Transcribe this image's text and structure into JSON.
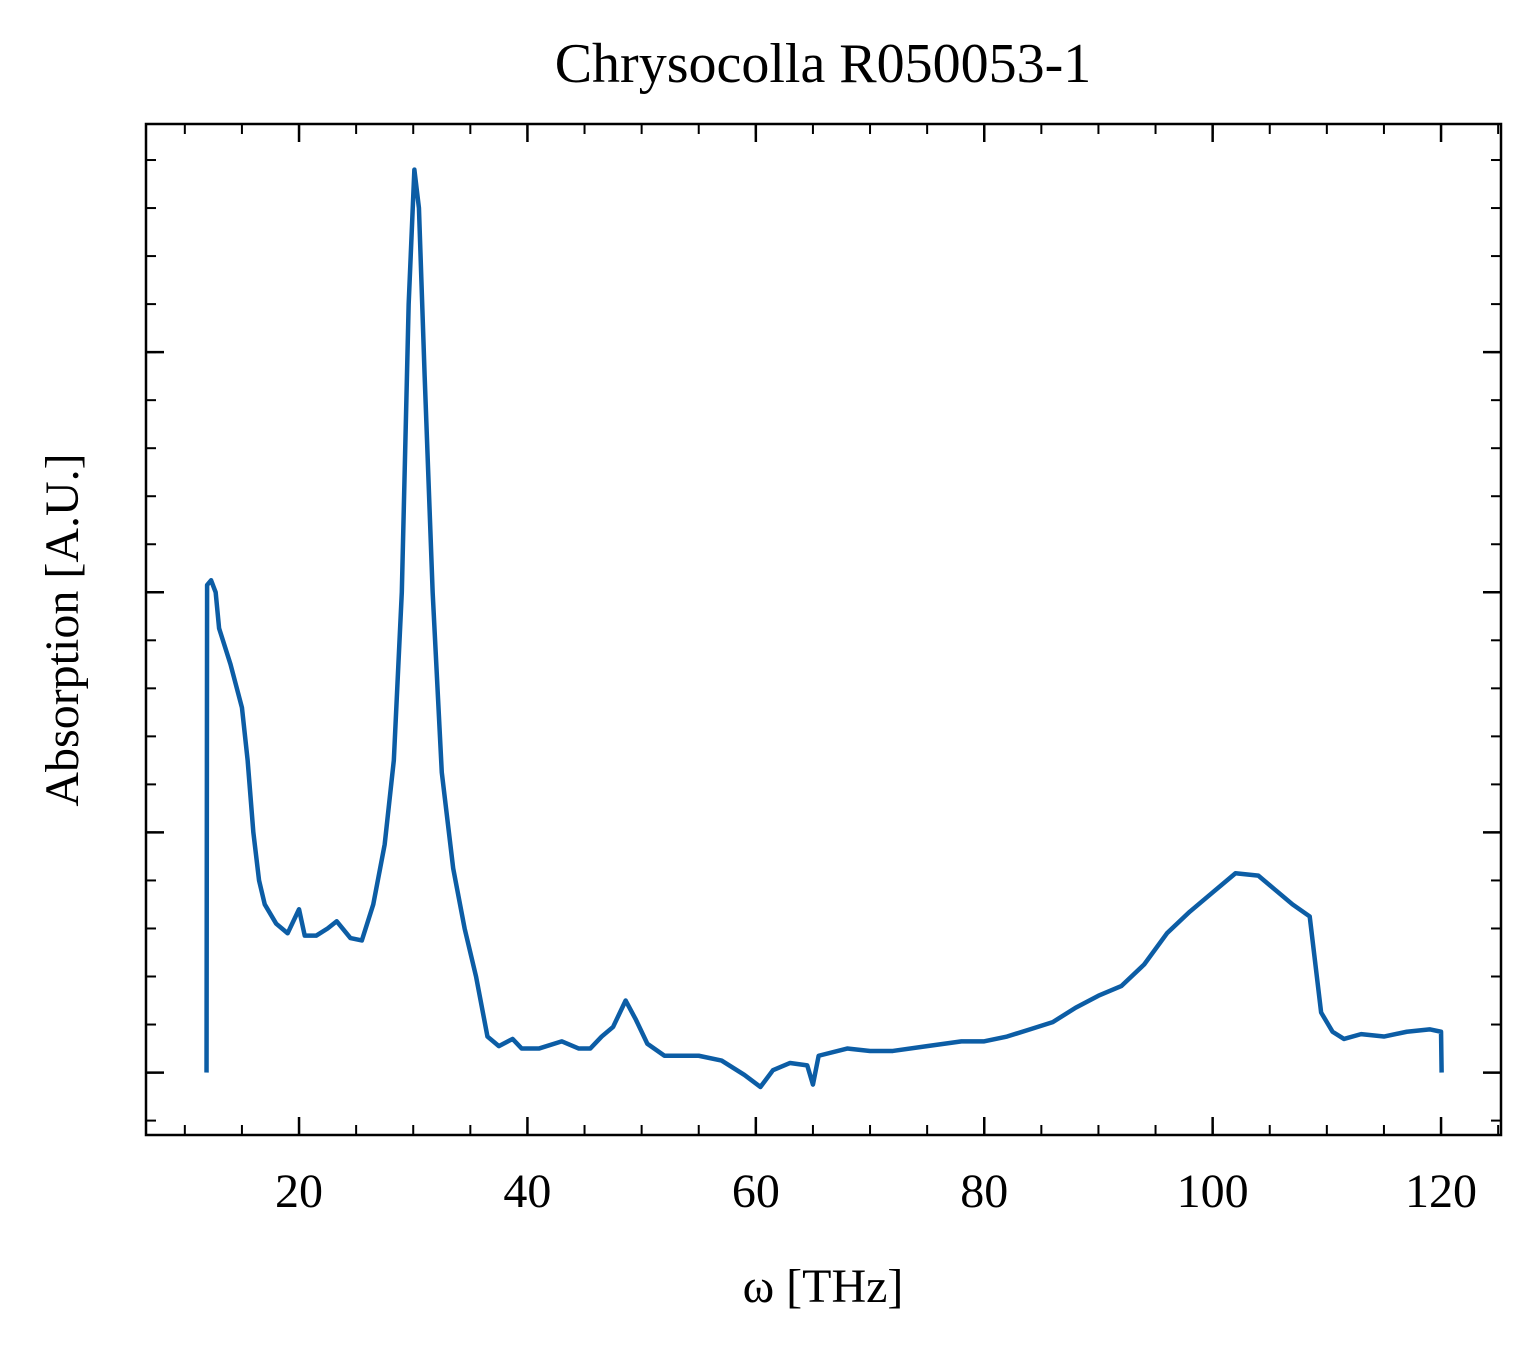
{
  "chart_data": {
    "type": "line",
    "title": "Chrysocolla R050053-1",
    "x_label": "ω [THz]",
    "y_label": "Absorption [A.U.]",
    "xlim": [
      6.6,
      125.25
    ],
    "ylim": [
      -0.26,
      3.95
    ],
    "xticks": [
      20,
      40,
      60,
      80,
      100,
      120
    ],
    "yticks": [
      0,
      1,
      2,
      3
    ],
    "ytick_labels": false,
    "minor_xstep": 5,
    "minor_ystep": 0.2,
    "ticks_inside": true,
    "mirror_ticks": true,
    "series": [
      {
        "color": "#0c5da5",
        "x": [
          11.9,
          11.95,
          12.3,
          12.7,
          13,
          14,
          15,
          15.5,
          16,
          16.5,
          17,
          18,
          19,
          20,
          20.5,
          21.5,
          22.5,
          23.3,
          24.5,
          25.5,
          26.5,
          27.5,
          28.3,
          29,
          29.6,
          30.1,
          30.5,
          31,
          31.7,
          32.5,
          33.5,
          34.5,
          35.5,
          36.5,
          37.5,
          38.7,
          39.5,
          41,
          43,
          44.5,
          45.5,
          46.5,
          47.5,
          48.6,
          49.5,
          50.5,
          52,
          55,
          57,
          59,
          60.4,
          61.5,
          63,
          64.5,
          65,
          65.5,
          68,
          70,
          72,
          75,
          78,
          80,
          82,
          84,
          86,
          88,
          90,
          92,
          94,
          96,
          98,
          100,
          102,
          104,
          105.5,
          107,
          108.5,
          109.5,
          110.5,
          111.5,
          113,
          115,
          117,
          119,
          120,
          120.05
        ],
        "values": [
          0,
          2.03,
          2.05,
          2.0,
          1.85,
          1.7,
          1.52,
          1.3,
          1.0,
          0.8,
          0.7,
          0.62,
          0.58,
          0.68,
          0.57,
          0.57,
          0.6,
          0.63,
          0.56,
          0.55,
          0.7,
          0.95,
          1.3,
          2.0,
          3.2,
          3.76,
          3.6,
          2.9,
          2.0,
          1.25,
          0.85,
          0.6,
          0.4,
          0.15,
          0.11,
          0.14,
          0.1,
          0.1,
          0.13,
          0.1,
          0.1,
          0.15,
          0.19,
          0.3,
          0.22,
          0.12,
          0.07,
          0.07,
          0.05,
          -0.01,
          -0.06,
          0.01,
          0.04,
          0.03,
          -0.05,
          0.07,
          0.1,
          0.09,
          0.09,
          0.11,
          0.13,
          0.13,
          0.15,
          0.18,
          0.21,
          0.27,
          0.32,
          0.36,
          0.45,
          0.58,
          0.67,
          0.75,
          0.83,
          0.82,
          0.76,
          0.7,
          0.65,
          0.25,
          0.17,
          0.14,
          0.16,
          0.15,
          0.17,
          0.18,
          0.17,
          0
        ]
      }
    ]
  }
}
